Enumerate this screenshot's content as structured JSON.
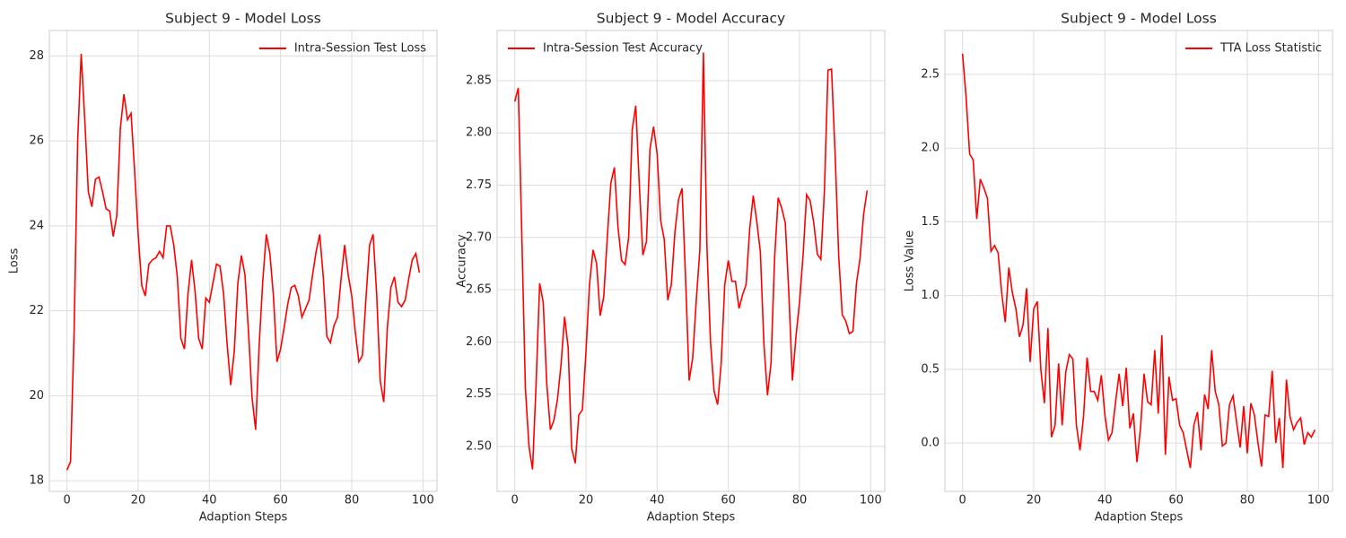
{
  "chart_data": [
    {
      "type": "line",
      "title": "Subject 9 - Model Loss",
      "xlabel": "Adaption Steps",
      "ylabel": "Loss",
      "x": [
        0,
        1,
        2,
        3,
        4,
        5,
        6,
        7,
        8,
        9,
        10,
        11,
        12,
        13,
        14,
        15,
        16,
        17,
        18,
        19,
        20,
        21,
        22,
        23,
        24,
        25,
        26,
        27,
        28,
        29,
        30,
        31,
        32,
        33,
        34,
        35,
        36,
        37,
        38,
        39,
        40,
        41,
        42,
        43,
        44,
        45,
        46,
        47,
        48,
        49,
        50,
        51,
        52,
        53,
        54,
        55,
        56,
        57,
        58,
        59,
        60,
        61,
        62,
        63,
        64,
        65,
        66,
        67,
        68,
        69,
        70,
        71,
        72,
        73,
        74,
        75,
        76,
        77,
        78,
        79,
        80,
        81,
        82,
        83,
        84,
        85,
        86,
        87,
        88,
        89,
        90,
        91,
        92,
        93,
        94,
        95,
        96,
        97,
        98,
        99
      ],
      "series": [
        {
          "name": "Intra-Session Test Loss",
          "color": "#ff0000",
          "values": [
            18.25,
            18.45,
            21.5,
            26.0,
            28.05,
            26.5,
            24.8,
            24.45,
            25.1,
            25.15,
            24.8,
            24.4,
            24.35,
            23.75,
            24.25,
            26.3,
            27.1,
            26.5,
            26.65,
            25.3,
            23.8,
            22.6,
            22.35,
            23.1,
            23.2,
            23.25,
            23.4,
            23.25,
            24.0,
            24.0,
            23.55,
            22.8,
            21.35,
            21.1,
            22.4,
            23.2,
            22.45,
            21.35,
            21.1,
            22.3,
            22.2,
            22.65,
            23.1,
            23.05,
            22.4,
            21.2,
            20.25,
            21.05,
            22.65,
            23.3,
            22.85,
            21.5,
            19.95,
            19.2,
            21.2,
            22.7,
            23.8,
            23.35,
            22.35,
            20.8,
            21.1,
            21.6,
            22.15,
            22.55,
            22.6,
            22.35,
            21.85,
            22.05,
            22.25,
            22.85,
            23.4,
            23.8,
            22.8,
            21.4,
            21.25,
            21.65,
            21.85,
            22.75,
            23.55,
            22.85,
            22.35,
            21.5,
            20.8,
            20.95,
            22.3,
            23.55,
            23.8,
            22.4,
            20.35,
            19.85,
            21.6,
            22.55,
            22.8,
            22.2,
            22.1,
            22.25,
            22.75,
            23.2,
            23.35,
            22.9
          ]
        }
      ],
      "xlim": [
        -4.95,
        103.95
      ],
      "ylim": [
        17.75,
        28.6
      ],
      "xticks": [
        0,
        20,
        40,
        60,
        80,
        100
      ],
      "yticks": [
        18,
        20,
        22,
        24,
        26,
        28
      ],
      "grid": true,
      "legend": "upper right"
    },
    {
      "type": "line",
      "title": "Subject 9 - Model Accuracy",
      "xlabel": "Adaption Steps",
      "ylabel": "Accuracy",
      "x": [
        0,
        1,
        2,
        3,
        4,
        5,
        6,
        7,
        8,
        9,
        10,
        11,
        12,
        13,
        14,
        15,
        16,
        17,
        18,
        19,
        20,
        21,
        22,
        23,
        24,
        25,
        26,
        27,
        28,
        29,
        30,
        31,
        32,
        33,
        34,
        35,
        36,
        37,
        38,
        39,
        40,
        41,
        42,
        43,
        44,
        45,
        46,
        47,
        48,
        49,
        50,
        51,
        52,
        53,
        54,
        55,
        56,
        57,
        58,
        59,
        60,
        61,
        62,
        63,
        64,
        65,
        66,
        67,
        68,
        69,
        70,
        71,
        72,
        73,
        74,
        75,
        76,
        77,
        78,
        79,
        80,
        81,
        82,
        83,
        84,
        85,
        86,
        87,
        88,
        89,
        90,
        91,
        92,
        93,
        94,
        95,
        96,
        97,
        98,
        99
      ],
      "series": [
        {
          "name": "Intra-Session Test Accuracy",
          "color": "#ff0000",
          "values": [
            2.83,
            2.843,
            2.7,
            2.555,
            2.5,
            2.478,
            2.56,
            2.656,
            2.638,
            2.56,
            2.516,
            2.525,
            2.545,
            2.578,
            2.624,
            2.595,
            2.498,
            2.484,
            2.53,
            2.535,
            2.59,
            2.655,
            2.688,
            2.675,
            2.625,
            2.643,
            2.7,
            2.752,
            2.767,
            2.71,
            2.678,
            2.674,
            2.7,
            2.803,
            2.826,
            2.75,
            2.683,
            2.696,
            2.785,
            2.806,
            2.78,
            2.716,
            2.698,
            2.64,
            2.655,
            2.705,
            2.736,
            2.747,
            2.66,
            2.563,
            2.585,
            2.64,
            2.688,
            2.877,
            2.69,
            2.6,
            2.553,
            2.54,
            2.58,
            2.655,
            2.678,
            2.658,
            2.658,
            2.632,
            2.645,
            2.655,
            2.708,
            2.74,
            2.715,
            2.686,
            2.598,
            2.549,
            2.58,
            2.68,
            2.738,
            2.728,
            2.714,
            2.647,
            2.563,
            2.605,
            2.638,
            2.683,
            2.741,
            2.735,
            2.714,
            2.684,
            2.679,
            2.745,
            2.86,
            2.861,
            2.78,
            2.683,
            2.626,
            2.62,
            2.608,
            2.61,
            2.656,
            2.68,
            2.722,
            2.745
          ]
        }
      ],
      "xlim": [
        -4.95,
        103.95
      ],
      "ylim": [
        2.457,
        2.898
      ],
      "xticks": [
        0,
        20,
        40,
        60,
        80,
        100
      ],
      "yticks": [
        {
          "value": 2.5,
          "label": "2.50"
        },
        2.55,
        {
          "value": 2.6,
          "label": "2.60"
        },
        2.65,
        {
          "value": 2.7,
          "label": "2.70"
        },
        2.75,
        {
          "value": 2.8,
          "label": "2.80"
        },
        2.85
      ],
      "grid": true,
      "legend": "upper left"
    },
    {
      "type": "line",
      "title": "Subject 9 - Model Loss",
      "xlabel": "Adaption Steps",
      "ylabel": "Loss Value",
      "x": [
        0,
        1,
        2,
        3,
        4,
        5,
        6,
        7,
        8,
        9,
        10,
        11,
        12,
        13,
        14,
        15,
        16,
        17,
        18,
        19,
        20,
        21,
        22,
        23,
        24,
        25,
        26,
        27,
        28,
        29,
        30,
        31,
        32,
        33,
        34,
        35,
        36,
        37,
        38,
        39,
        40,
        41,
        42,
        43,
        44,
        45,
        46,
        47,
        48,
        49,
        50,
        51,
        52,
        53,
        54,
        55,
        56,
        57,
        58,
        59,
        60,
        61,
        62,
        63,
        64,
        65,
        66,
        67,
        68,
        69,
        70,
        71,
        72,
        73,
        74,
        75,
        76,
        77,
        78,
        79,
        80,
        81,
        82,
        83,
        84,
        85,
        86,
        87,
        88,
        89,
        90,
        91,
        92,
        93,
        94,
        95,
        96,
        97,
        98,
        99
      ],
      "series": [
        {
          "name": "TTA Loss Statistic",
          "color": "#ff0000",
          "values": [
            2.64,
            2.35,
            1.96,
            1.92,
            1.52,
            1.79,
            1.73,
            1.66,
            1.3,
            1.34,
            1.29,
            1.02,
            0.82,
            1.19,
            1.02,
            0.91,
            0.72,
            0.8,
            1.05,
            0.55,
            0.91,
            0.96,
            0.5,
            0.27,
            0.78,
            0.04,
            0.12,
            0.54,
            0.12,
            0.48,
            0.6,
            0.57,
            0.12,
            -0.05,
            0.18,
            0.58,
            0.35,
            0.35,
            0.29,
            0.46,
            0.19,
            0.02,
            0.07,
            0.28,
            0.47,
            0.25,
            0.51,
            0.1,
            0.2,
            -0.13,
            0.1,
            0.47,
            0.28,
            0.26,
            0.63,
            0.2,
            0.73,
            -0.08,
            0.45,
            0.29,
            0.3,
            0.12,
            0.07,
            -0.05,
            -0.17,
            0.12,
            0.21,
            -0.05,
            0.33,
            0.23,
            0.63,
            0.35,
            0.26,
            -0.02,
            0.0,
            0.26,
            0.32,
            0.14,
            -0.03,
            0.25,
            -0.07,
            0.27,
            0.19,
            0.0,
            -0.16,
            0.19,
            0.18,
            0.49,
            0.0,
            0.17,
            -0.17,
            0.43,
            0.18,
            0.09,
            0.14,
            0.17,
            -0.01,
            0.07,
            0.04,
            0.09
          ]
        }
      ],
      "xlim": [
        -4.95,
        103.95
      ],
      "ylim": [
        -0.328,
        2.798
      ],
      "xticks": [
        0,
        20,
        40,
        60,
        80,
        100
      ],
      "yticks": [
        {
          "value": 0,
          "label": "0.0"
        },
        0.5,
        {
          "value": 1,
          "label": "1.0"
        },
        1.5,
        {
          "value": 2,
          "label": "2.0"
        },
        2.5
      ],
      "grid": true,
      "legend": "upper right"
    }
  ]
}
